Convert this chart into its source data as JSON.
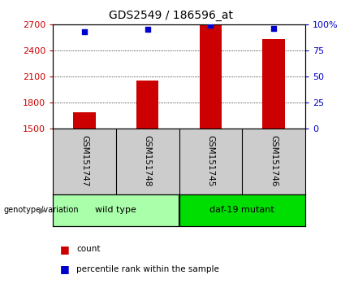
{
  "title": "GDS2549 / 186596_at",
  "samples": [
    "GSM151747",
    "GSM151748",
    "GSM151745",
    "GSM151746"
  ],
  "counts": [
    1685,
    2050,
    2700,
    2530
  ],
  "percentiles": [
    93,
    95,
    99,
    96
  ],
  "bar_color": "#cc0000",
  "dot_color": "#0000cc",
  "ylim_left": [
    1500,
    2700
  ],
  "ylim_right": [
    0,
    100
  ],
  "yticks_left": [
    1500,
    1800,
    2100,
    2400,
    2700
  ],
  "yticks_right": [
    0,
    25,
    50,
    75,
    100
  ],
  "ytick_labels_right": [
    "0",
    "25",
    "50",
    "75",
    "100%"
  ],
  "groups": [
    {
      "label": "wild type",
      "indices": [
        0,
        1
      ],
      "color": "#aaffaa"
    },
    {
      "label": "daf-19 mutant",
      "indices": [
        2,
        3
      ],
      "color": "#00dd00"
    }
  ],
  "group_label": "genotype/variation",
  "legend_count_label": "count",
  "legend_pct_label": "percentile rank within the sample",
  "bg_color": "#ffffff",
  "left_axis_color": "#cc0000",
  "right_axis_color": "#0000cc",
  "bar_width": 0.35
}
